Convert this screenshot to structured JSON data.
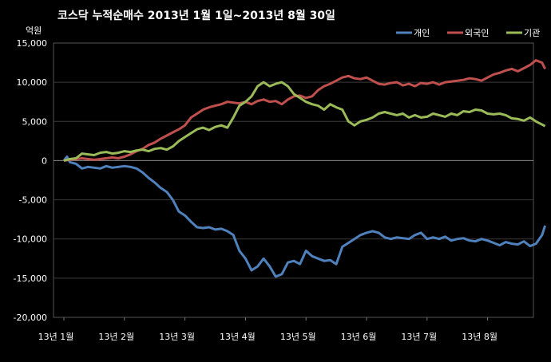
{
  "chart_data": {
    "type": "line",
    "title": "코스닥  누적순매수 2013년 1월 1일~2013년 8월 30일",
    "unit_label": "억원",
    "xlabel": "",
    "ylabel": "",
    "ylim": [
      -20000,
      15000
    ],
    "yticks": [
      "15,000",
      "10,000",
      "5,000",
      "0",
      "-5,000",
      "-10,000",
      "-15,000",
      "-20,000"
    ],
    "ytick_values": [
      15000,
      10000,
      5000,
      0,
      -5000,
      -10000,
      -15000,
      -20000
    ],
    "x_tick_labels": [
      "13년 1월",
      "13년 2월",
      "13년 3월",
      "13년 4월",
      "13년 5월",
      "13년 6월",
      "13년 7월",
      "13년 8월"
    ],
    "x_tick_positions": [
      0,
      1,
      2,
      3,
      4,
      5,
      6,
      7
    ],
    "xlim": [
      0,
      7.95
    ],
    "grid": true,
    "legend_position": "top-right",
    "series": [
      {
        "name": "개인",
        "color": "#4f81bd",
        "x": [
          0,
          0.05,
          0.1,
          0.2,
          0.3,
          0.4,
          0.5,
          0.6,
          0.7,
          0.8,
          0.9,
          1.0,
          1.1,
          1.2,
          1.3,
          1.4,
          1.5,
          1.6,
          1.7,
          1.8,
          1.9,
          2.0,
          2.1,
          2.2,
          2.3,
          2.4,
          2.5,
          2.6,
          2.7,
          2.8,
          2.9,
          3.0,
          3.1,
          3.2,
          3.3,
          3.4,
          3.5,
          3.6,
          3.7,
          3.8,
          3.9,
          4.0,
          4.1,
          4.2,
          4.3,
          4.4,
          4.5,
          4.6,
          4.7,
          4.8,
          4.9,
          5.0,
          5.1,
          5.2,
          5.3,
          5.4,
          5.5,
          5.6,
          5.7,
          5.8,
          5.9,
          6.0,
          6.1,
          6.2,
          6.3,
          6.4,
          6.5,
          6.6,
          6.7,
          6.8,
          6.9,
          7.0,
          7.1,
          7.2,
          7.3,
          7.4,
          7.5,
          7.6,
          7.7,
          7.8,
          7.9,
          7.95
        ],
        "values": [
          0,
          500,
          -200,
          -400,
          -1000,
          -800,
          -900,
          -1000,
          -700,
          -900,
          -800,
          -700,
          -800,
          -1000,
          -1500,
          -2200,
          -2800,
          -3500,
          -4000,
          -5000,
          -6500,
          -7000,
          -7800,
          -8500,
          -8600,
          -8500,
          -8800,
          -8700,
          -9000,
          -9500,
          -11500,
          -12500,
          -14000,
          -13500,
          -12500,
          -13500,
          -14800,
          -14500,
          -13000,
          -12800,
          -13200,
          -11500,
          -12200,
          -12500,
          -12800,
          -12700,
          -13200,
          -11000,
          -10500,
          -10000,
          -9500,
          -9200,
          -9000,
          -9200,
          -9800,
          -10000,
          -9800,
          -9900,
          -10000,
          -9500,
          -9200,
          -10000,
          -9800,
          -10000,
          -9700,
          -10200,
          -10000,
          -9900,
          -10200,
          -10300,
          -10000,
          -10200,
          -10500,
          -10800,
          -10400,
          -10600,
          -10700,
          -10300,
          -10900,
          -10600,
          -9500,
          -8300
        ]
      },
      {
        "name": "외국인",
        "color": "#c0504d",
        "x": [
          0,
          0.1,
          0.2,
          0.3,
          0.4,
          0.5,
          0.6,
          0.7,
          0.8,
          0.9,
          1.0,
          1.1,
          1.2,
          1.3,
          1.4,
          1.5,
          1.6,
          1.7,
          1.8,
          1.9,
          2.0,
          2.1,
          2.2,
          2.3,
          2.4,
          2.5,
          2.6,
          2.7,
          2.8,
          2.9,
          3.0,
          3.1,
          3.2,
          3.3,
          3.4,
          3.5,
          3.6,
          3.7,
          3.8,
          3.9,
          4.0,
          4.1,
          4.2,
          4.3,
          4.4,
          4.5,
          4.6,
          4.7,
          4.8,
          4.9,
          5.0,
          5.1,
          5.2,
          5.3,
          5.4,
          5.5,
          5.6,
          5.7,
          5.8,
          5.9,
          6.0,
          6.1,
          6.2,
          6.3,
          6.4,
          6.5,
          6.6,
          6.7,
          6.8,
          6.9,
          7.0,
          7.1,
          7.2,
          7.3,
          7.4,
          7.5,
          7.6,
          7.7,
          7.8,
          7.9,
          7.95
        ],
        "values": [
          0,
          100,
          200,
          300,
          200,
          100,
          200,
          300,
          400,
          300,
          500,
          800,
          1200,
          1500,
          2000,
          2300,
          2800,
          3200,
          3600,
          4000,
          4500,
          5500,
          6000,
          6500,
          6800,
          7000,
          7200,
          7500,
          7400,
          7300,
          7500,
          7200,
          7600,
          7800,
          7500,
          7600,
          7200,
          7800,
          8200,
          8300,
          8000,
          8200,
          9000,
          9500,
          9800,
          10200,
          10600,
          10800,
          10500,
          10400,
          10600,
          10200,
          9800,
          9700,
          9900,
          10000,
          9600,
          9800,
          9500,
          9900,
          9800,
          10000,
          9700,
          10000,
          10100,
          10200,
          10300,
          10500,
          10400,
          10200,
          10600,
          11000,
          11200,
          11500,
          11700,
          11400,
          11800,
          12200,
          12800,
          12500,
          11700
        ]
      },
      {
        "name": "기관",
        "color": "#9bbb59",
        "x": [
          0,
          0.1,
          0.2,
          0.3,
          0.4,
          0.5,
          0.6,
          0.7,
          0.8,
          0.9,
          1.0,
          1.1,
          1.2,
          1.3,
          1.4,
          1.5,
          1.6,
          1.7,
          1.8,
          1.9,
          2.0,
          2.1,
          2.2,
          2.3,
          2.4,
          2.5,
          2.6,
          2.7,
          2.8,
          2.9,
          3.0,
          3.1,
          3.2,
          3.3,
          3.4,
          3.5,
          3.6,
          3.7,
          3.8,
          3.9,
          4.0,
          4.1,
          4.2,
          4.3,
          4.4,
          4.5,
          4.6,
          4.7,
          4.8,
          4.9,
          5.0,
          5.1,
          5.2,
          5.3,
          5.4,
          5.5,
          5.6,
          5.7,
          5.8,
          5.9,
          6.0,
          6.1,
          6.2,
          6.3,
          6.4,
          6.5,
          6.6,
          6.7,
          6.8,
          6.9,
          7.0,
          7.1,
          7.2,
          7.3,
          7.4,
          7.5,
          7.6,
          7.7,
          7.8,
          7.9,
          7.95
        ],
        "values": [
          0,
          200,
          300,
          900,
          800,
          700,
          1000,
          1100,
          900,
          1000,
          1200,
          1100,
          1300,
          1400,
          1200,
          1500,
          1600,
          1400,
          1800,
          2500,
          3000,
          3500,
          4000,
          4200,
          3900,
          4300,
          4500,
          4200,
          5500,
          7000,
          7500,
          8200,
          9500,
          10000,
          9500,
          9800,
          10000,
          9500,
          8500,
          8000,
          7500,
          7200,
          7000,
          6500,
          7200,
          6800,
          6500,
          5000,
          4500,
          5000,
          5200,
          5500,
          6000,
          6200,
          6000,
          5800,
          6000,
          5500,
          5800,
          5500,
          5600,
          6000,
          5800,
          5600,
          6000,
          5800,
          6300,
          6200,
          6500,
          6400,
          6000,
          5900,
          6000,
          5800,
          5400,
          5300,
          5100,
          5500,
          5000,
          4600,
          4400
        ]
      }
    ]
  }
}
